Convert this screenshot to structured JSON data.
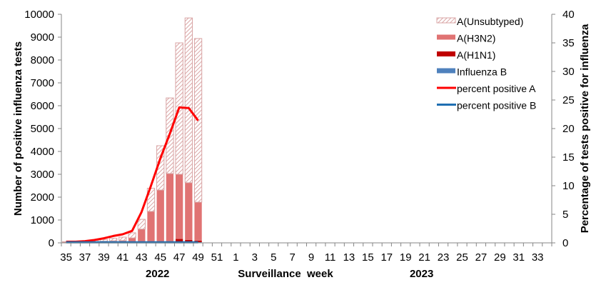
{
  "chart_data": {
    "type": "bar",
    "stacked": true,
    "title": "",
    "xlabel": "Surveillance  week",
    "ylabel": "Number of positive influenza tests",
    "y2label": "Percentage of tests positive for influenza",
    "ylim": [
      0,
      10000
    ],
    "y2lim": [
      0,
      40
    ],
    "yticks": [
      0,
      1000,
      2000,
      3000,
      4000,
      5000,
      6000,
      7000,
      8000,
      9000,
      10000
    ],
    "y2ticks": [
      0,
      5,
      10,
      15,
      20,
      25,
      30,
      35,
      40
    ],
    "year_labels": [
      {
        "label": "2022",
        "center_week_index": 10
      },
      {
        "label": "2023",
        "center_week_index": 38
      }
    ],
    "categories": [
      35,
      36,
      37,
      38,
      39,
      40,
      41,
      42,
      43,
      44,
      45,
      46,
      47,
      48,
      49,
      50,
      51,
      52,
      1,
      2,
      3,
      4,
      5,
      6,
      7,
      8,
      9,
      10,
      11,
      12,
      13,
      14,
      15,
      16,
      17,
      18,
      19,
      20,
      21,
      22,
      23,
      24,
      25,
      26,
      27,
      28,
      29,
      30,
      31,
      32,
      33,
      34
    ],
    "tick_labels": [
      "35",
      "37",
      "39",
      "41",
      "43",
      "45",
      "47",
      "49",
      "51",
      "1",
      "3",
      "5",
      "7",
      "9",
      "11",
      "13",
      "15",
      "17",
      "19",
      "21",
      "23",
      "25",
      "27",
      "29",
      "31",
      "33"
    ],
    "series": [
      {
        "name": "Influenza B",
        "kind": "bar",
        "color": "#4f81bd",
        "values": [
          20,
          20,
          20,
          25,
          25,
          25,
          25,
          25,
          30,
          30,
          30,
          30,
          30,
          30,
          30
        ]
      },
      {
        "name": "A(H1N1)",
        "kind": "bar",
        "color": "#c00000",
        "values": [
          5,
          5,
          5,
          5,
          5,
          5,
          5,
          10,
          10,
          15,
          20,
          40,
          140,
          100,
          70
        ]
      },
      {
        "name": "A(H3N2)",
        "kind": "bar",
        "color": "#e07373",
        "values": [
          10,
          10,
          20,
          30,
          40,
          60,
          70,
          180,
          560,
          1330,
          2260,
          2960,
          2830,
          2500,
          1680
        ]
      },
      {
        "name": "A(Unsubtyped)",
        "kind": "bar-hatched",
        "color": "#d9a5a5",
        "values": [
          15,
          20,
          40,
          60,
          80,
          110,
          150,
          225,
          430,
          1015,
          1940,
          3310,
          5750,
          7210,
          7160
        ]
      },
      {
        "name": "percent positive A",
        "kind": "line",
        "axis": "right",
        "color": "#ff0000",
        "values": [
          0.2,
          0.2,
          0.3,
          0.5,
          0.8,
          1.2,
          1.5,
          2.1,
          5.4,
          10.0,
          14.8,
          19.1,
          23.7,
          23.6,
          21.4
        ]
      },
      {
        "name": "percent positive B",
        "kind": "line",
        "axis": "right",
        "color": "#1f6fb2",
        "values": [
          0.1,
          0.1,
          0.1,
          0.1,
          0.1,
          0.1,
          0.1,
          0.1,
          0.1,
          0.1,
          0.1,
          0.1,
          0.1,
          0.1,
          0.1
        ]
      }
    ],
    "legend_position": "top-right",
    "grid": false
  },
  "legend": {
    "items": [
      {
        "label": "A(Unsubtyped)",
        "swatch": "hatched",
        "color": "#d9a5a5"
      },
      {
        "label": "A(H3N2)",
        "swatch": "bar",
        "color": "#e07373"
      },
      {
        "label": "A(H1N1)",
        "swatch": "bar",
        "color": "#c00000"
      },
      {
        "label": "Influenza B",
        "swatch": "bar",
        "color": "#4f81bd"
      },
      {
        "label": "percent positive A",
        "swatch": "line",
        "color": "#ff0000"
      },
      {
        "label": "percent positive B",
        "swatch": "line",
        "color": "#1f6fb2"
      }
    ]
  }
}
